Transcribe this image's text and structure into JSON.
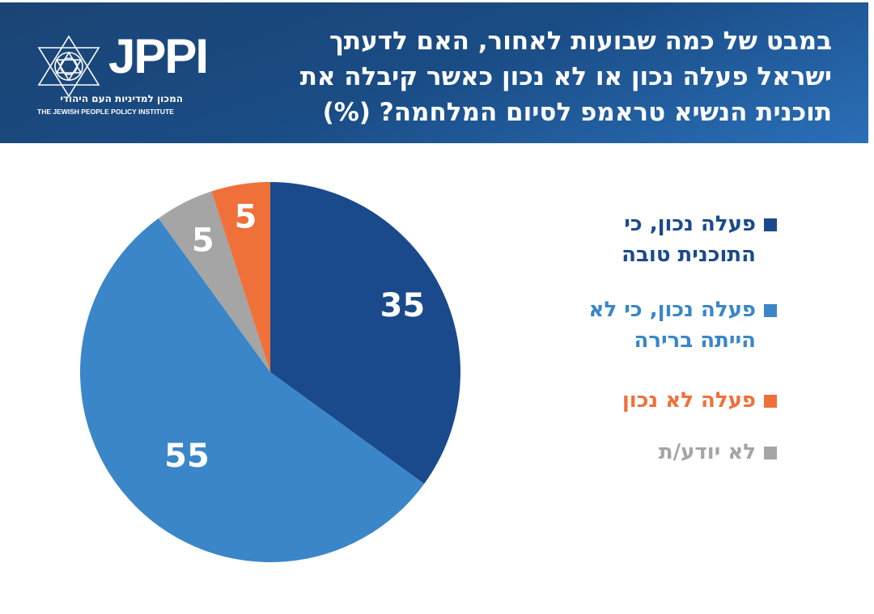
{
  "header": {
    "title": "במבט של כמה שבועות לאחור, האם לדעתך ישראל פעלה נכון או לא נכון כאשר קיבלה את תוכנית הנשיא טראמפ לסיום המלחמה? (%)",
    "logo": {
      "wordmark": "JPPI",
      "hebrew_name": "המכון למדיניות העם היהודי",
      "english_name": "THE JEWISH PEOPLE POLICY INSTITUTE",
      "icon": "star-of-david-icon"
    }
  },
  "chart_data": {
    "type": "pie",
    "title": "במבט של כמה שבועות לאחור, האם לדעתך ישראל פעלה נכון או לא נכון כאשר קיבלה את תוכנית הנשיא טראמפ לסיום המלחמה? (%)",
    "unit": "%",
    "start_angle": "12 o'clock",
    "direction": "clockwise",
    "legend_position": "right",
    "slices": [
      {
        "label": "פעלה נכון, כי התוכנית טובה",
        "value": 35,
        "color": "#1b4a8c"
      },
      {
        "label": "פעלה נכון, כי לא הייתה ברירה",
        "value": 55,
        "color": "#3a86c8"
      },
      {
        "label": "לא יודע/ת",
        "value": 5,
        "color": "#a5a5a5"
      },
      {
        "label": "פעלה לא נכון",
        "value": 5,
        "color": "#f0703a"
      }
    ]
  },
  "legend": [
    {
      "label": "פעלה נכון, כי התוכנית טובה",
      "color": "#1b4a8c"
    },
    {
      "label": "פעלה נכון, כי לא הייתה ברירה",
      "color": "#3a86c8"
    },
    {
      "label": "פעלה לא נכון",
      "color": "#f0703a"
    },
    {
      "label": "לא יודע/ת",
      "color": "#a5a5a5"
    }
  ]
}
